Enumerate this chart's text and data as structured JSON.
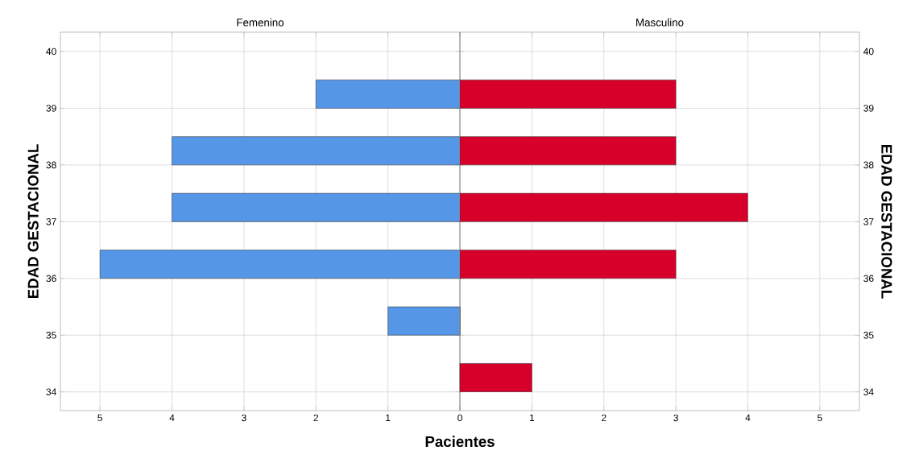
{
  "chart_data": [
    {
      "type": "bar",
      "orientation": "horizontal",
      "title": "Femenino",
      "ylabel": "EDAD GESTACIONAL",
      "xlabel": "Pacientes",
      "x": [
        34.25,
        35.25,
        36.25,
        37.25,
        38.25,
        39.25
      ],
      "values": [
        0,
        1,
        5,
        4,
        4,
        2
      ],
      "color": "#5596e6",
      "xlim": [
        5.55,
        0
      ],
      "xticks": [
        0,
        1,
        2,
        3,
        4,
        5
      ],
      "ylim": [
        33.67,
        40.34
      ],
      "yticks": [
        34,
        35,
        36,
        37,
        38,
        39,
        40
      ],
      "grid": true
    },
    {
      "type": "bar",
      "orientation": "horizontal",
      "title": "Masculino",
      "ylabel": "EDAD GESTACIONAL",
      "x": [
        34.25,
        35.25,
        36.25,
        37.25,
        38.25,
        39.25
      ],
      "values": [
        1,
        0,
        3,
        4,
        3,
        3
      ],
      "color": "#d6002b",
      "xlim": [
        0,
        5.55
      ],
      "xticks": [
        {
          "value": 0,
          "label": null
        },
        1,
        2,
        3,
        4,
        5
      ],
      "ylim": [
        33.67,
        40.34
      ],
      "yticks": [
        34,
        35,
        36,
        37,
        38,
        39,
        40
      ],
      "grid": true
    }
  ]
}
